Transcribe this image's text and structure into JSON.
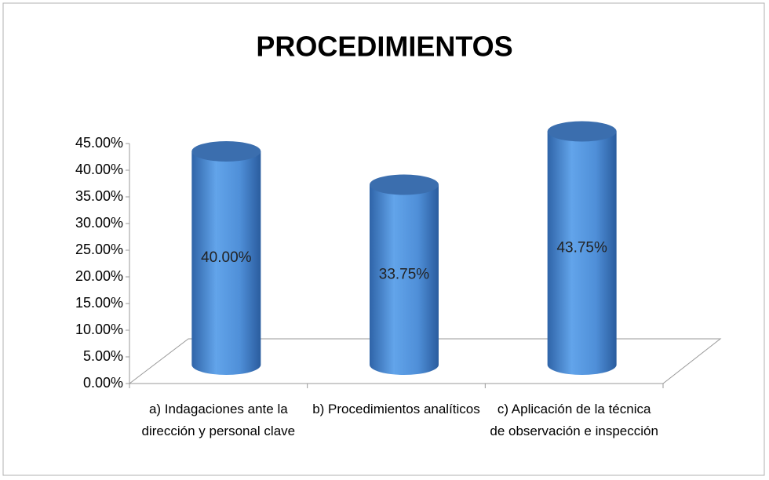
{
  "chart_data": {
    "type": "bar",
    "title": "PROCEDIMIENTOS",
    "categories": [
      "a) Indagaciones ante la dirección y personal clave",
      "b) Procedimientos analíticos",
      "c) Aplicación de la técnica de observación e inspección"
    ],
    "values": [
      40,
      33.75,
      43.75
    ],
    "value_labels": [
      "40.00%",
      "33.75%",
      "43.75%"
    ],
    "color": "#4f8fd8",
    "ylim": [
      0,
      45
    ],
    "yticks": [
      {
        "value": 0,
        "label": "0.00%"
      },
      {
        "value": 5,
        "label": "5.00%"
      },
      {
        "value": 10,
        "label": "10.00%"
      },
      {
        "value": 15,
        "label": "15.00%"
      },
      {
        "value": 20,
        "label": "20.00%"
      },
      {
        "value": 25,
        "label": "25.00%"
      },
      {
        "value": 30,
        "label": "30.00%"
      },
      {
        "value": 35,
        "label": "35.00%"
      },
      {
        "value": 40,
        "label": "40.00%"
      },
      {
        "value": 45,
        "label": "45.00%"
      }
    ]
  }
}
